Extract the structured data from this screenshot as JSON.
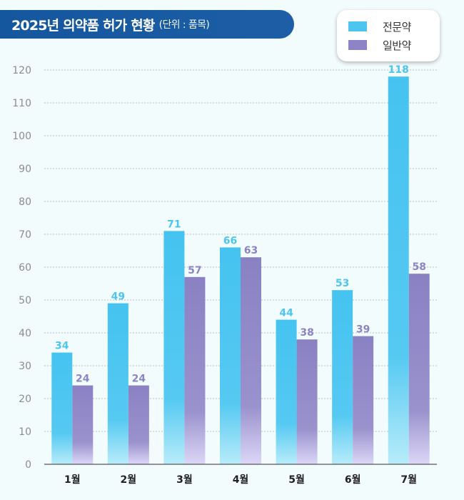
{
  "title": {
    "main": "2025년 의약품 허가 현황",
    "unit": "(단위 : 품목)"
  },
  "colors": {
    "banner": "#1a5da5",
    "prescription": "#4cc5ef",
    "otc": "#8c84c4"
  },
  "chart_data": {
    "type": "bar",
    "categories": [
      "1월",
      "2월",
      "3월",
      "4월",
      "5월",
      "6월",
      "7월"
    ],
    "series": [
      {
        "name": "전문약",
        "values": [
          34,
          49,
          71,
          66,
          44,
          53,
          118
        ]
      },
      {
        "name": "일반약",
        "values": [
          24,
          24,
          57,
          63,
          38,
          39,
          58
        ]
      }
    ],
    "yticks": [
      "0",
      "10",
      "20",
      "30",
      "40",
      "50",
      "60",
      "70",
      "80",
      "90",
      "100",
      "110",
      "120"
    ],
    "ylim": [
      0,
      120
    ],
    "grid": true,
    "legend_position": "top-right",
    "data_labels": true
  }
}
